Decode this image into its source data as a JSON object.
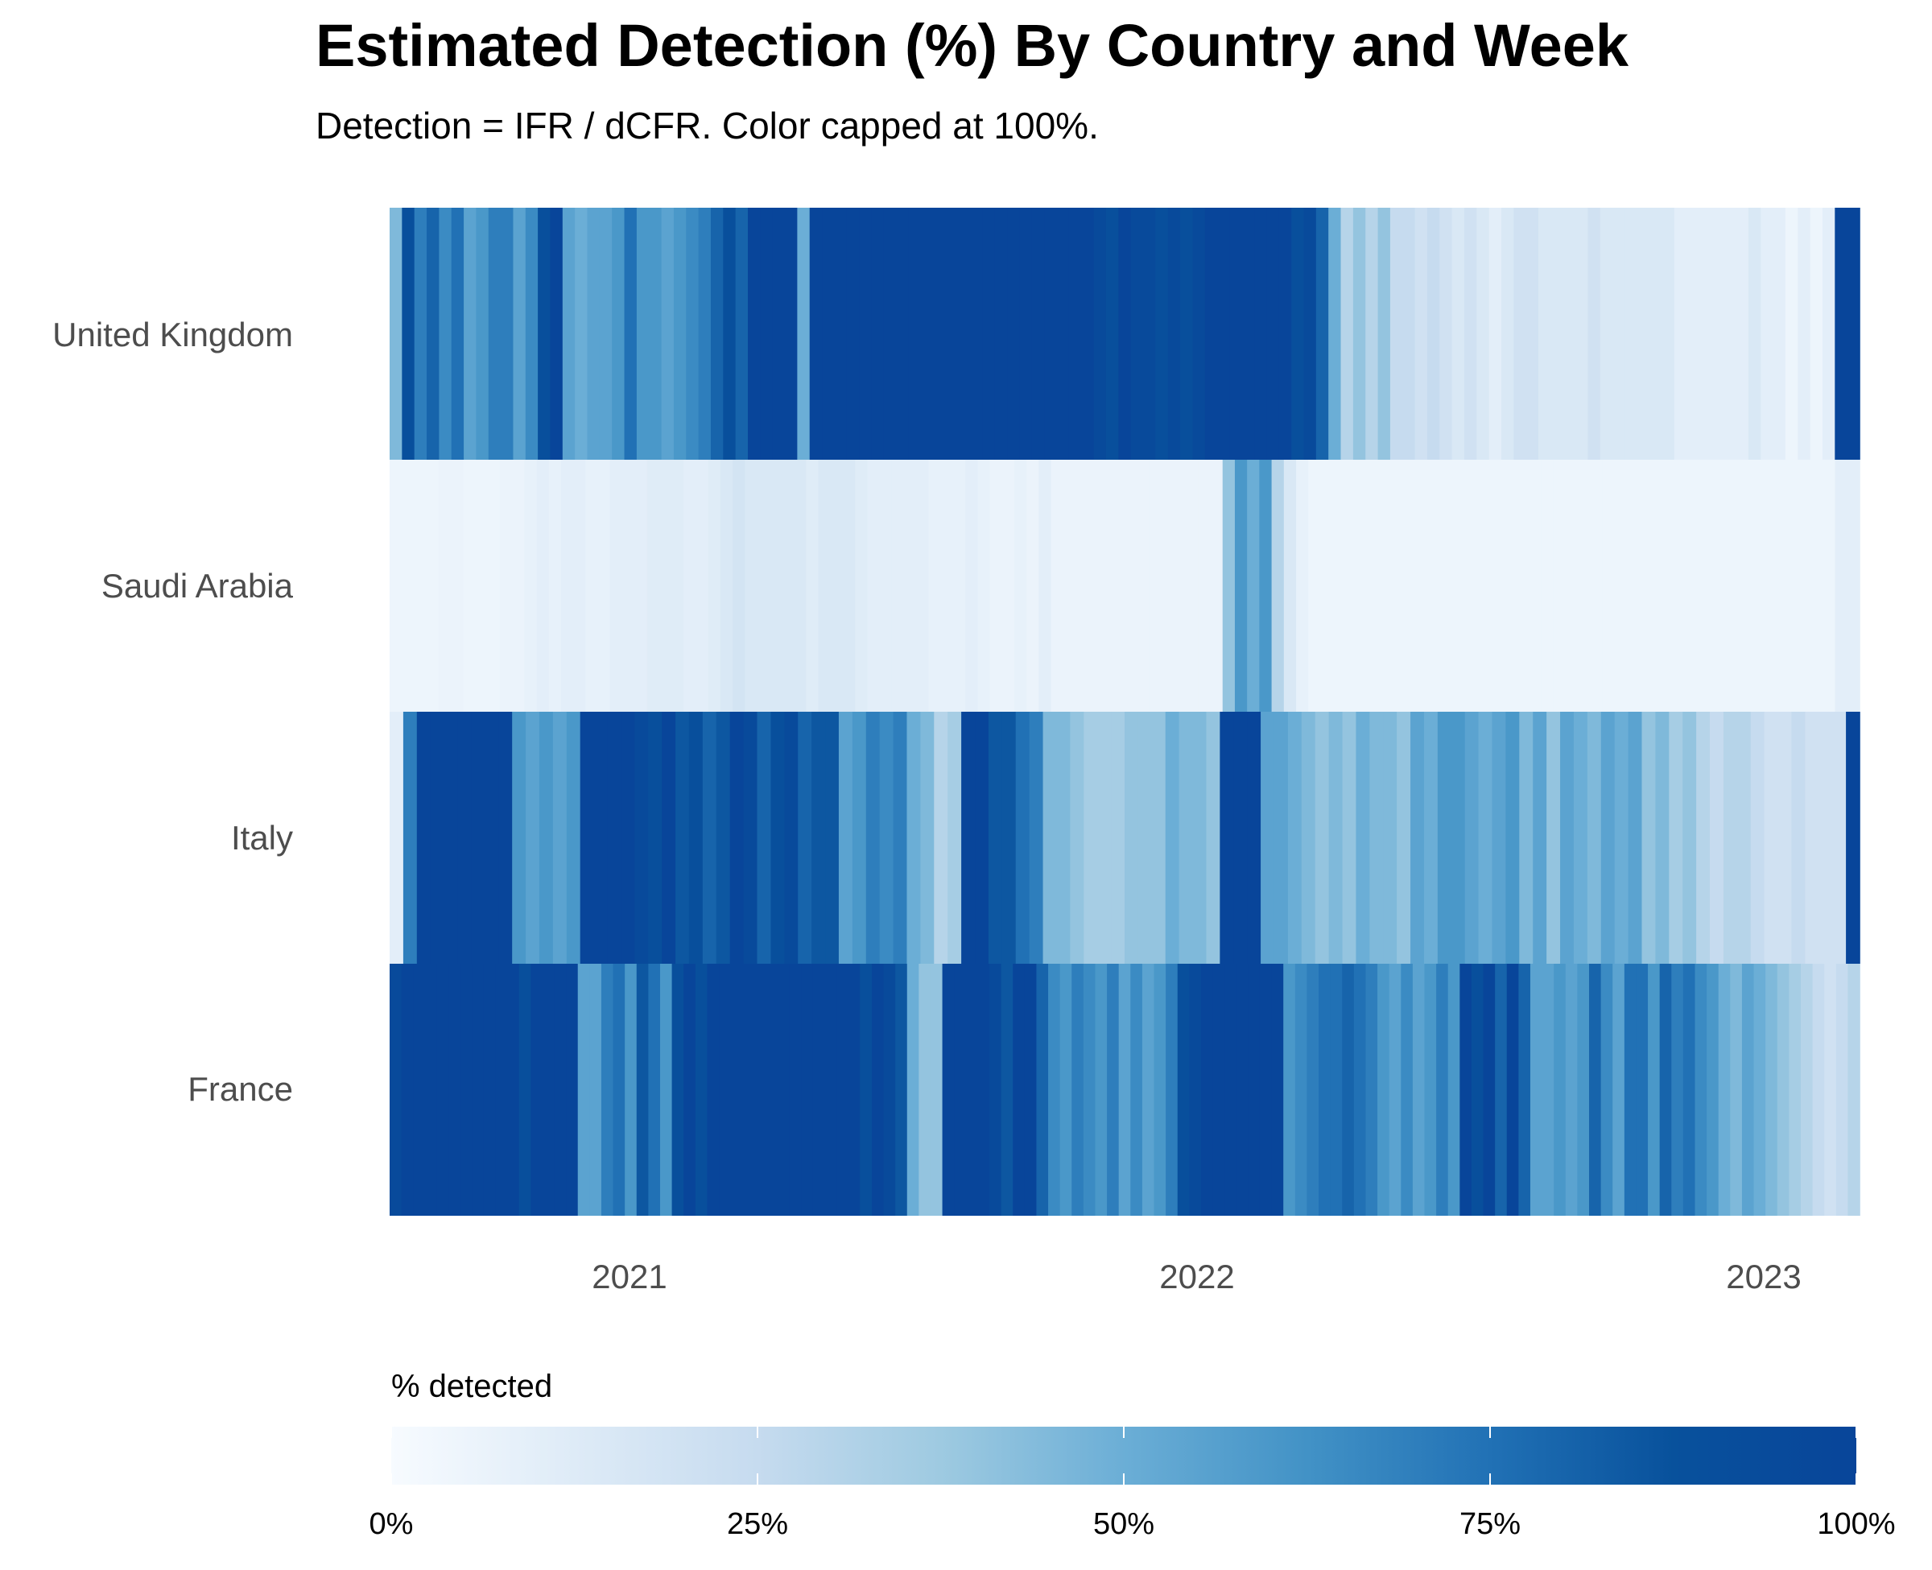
{
  "colors": {
    "scale": [
      "#f7fbff",
      "#deebf7",
      "#c6dbef",
      "#9ecae1",
      "#6baed6",
      "#4292c6",
      "#2171b5",
      "#08519c",
      "#08459a"
    ],
    "background": "#ffffff"
  },
  "chart_data": {
    "type": "heatmap",
    "title": "Estimated Detection (%) By Country and Week",
    "subtitle": "Detection = IFR / dCFR. Color capped at 100%.",
    "y_categories": [
      "United Kingdom",
      "Saudi Arabia",
      "Italy",
      "France"
    ],
    "x_ticks": [
      "2021",
      "2022",
      "2023"
    ],
    "x_range": [
      "2020-07",
      "2023-03"
    ],
    "legend": {
      "title": "% detected",
      "ticks": [
        "0%",
        "25%",
        "50%",
        "75%",
        "100%"
      ],
      "range": [
        0,
        100
      ],
      "placement": "bottom"
    },
    "series": [
      {
        "name": "United Kingdom",
        "values": [
          45,
          90,
          70,
          80,
          65,
          75,
          55,
          60,
          70,
          70,
          55,
          65,
          90,
          100,
          55,
          50,
          55,
          55,
          60,
          75,
          60,
          60,
          55,
          60,
          65,
          70,
          80,
          90,
          80,
          100,
          100,
          100,
          100,
          50,
          100,
          100,
          100,
          100,
          100,
          100,
          100,
          100,
          100,
          100,
          100,
          100,
          100,
          100,
          100,
          100,
          100,
          100,
          100,
          100,
          100,
          100,
          100,
          95,
          90,
          100,
          95,
          95,
          90,
          95,
          90,
          95,
          100,
          100,
          100,
          100,
          100,
          100,
          100,
          90,
          95,
          80,
          50,
          30,
          40,
          30,
          40,
          25,
          25,
          20,
          25,
          20,
          15,
          20,
          15,
          10,
          15,
          20,
          20,
          15,
          15,
          15,
          15,
          20,
          15,
          15,
          15,
          15,
          15,
          15,
          10,
          10,
          10,
          10,
          10,
          10,
          15,
          10,
          10,
          5,
          10,
          5,
          10,
          100,
          100
        ]
      },
      {
        "name": "Saudi Arabia",
        "values": [
          5,
          5,
          5,
          5,
          6,
          6,
          5,
          5,
          5,
          6,
          6,
          8,
          10,
          8,
          10,
          10,
          8,
          8,
          10,
          10,
          10,
          12,
          12,
          12,
          10,
          10,
          12,
          15,
          18,
          15,
          15,
          15,
          15,
          15,
          12,
          15,
          15,
          15,
          12,
          10,
          10,
          10,
          10,
          10,
          8,
          8,
          8,
          10,
          8,
          6,
          6,
          8,
          6,
          10,
          6,
          6,
          6,
          6,
          6,
          6,
          6,
          6,
          6,
          6,
          6,
          6,
          6,
          6,
          40,
          60,
          50,
          60,
          30,
          15,
          8,
          5,
          5,
          5,
          5,
          5,
          5,
          5,
          5,
          5,
          5,
          5,
          5,
          5,
          5,
          5,
          5,
          5,
          5,
          5,
          5,
          5,
          5,
          5,
          5,
          5,
          5,
          5,
          5,
          5,
          5,
          5,
          5,
          5,
          5,
          5,
          5,
          5,
          5,
          5,
          5,
          5,
          5,
          5,
          10,
          10
        ]
      },
      {
        "name": "Italy",
        "values": [
          10,
          70,
          100,
          100,
          100,
          100,
          100,
          100,
          100,
          60,
          55,
          60,
          55,
          60,
          100,
          100,
          100,
          100,
          95,
          90,
          100,
          85,
          90,
          80,
          85,
          100,
          95,
          80,
          90,
          95,
          80,
          85,
          85,
          55,
          60,
          70,
          65,
          70,
          50,
          45,
          30,
          35,
          100,
          100,
          85,
          85,
          75,
          70,
          45,
          45,
          40,
          35,
          35,
          35,
          40,
          40,
          40,
          50,
          45,
          45,
          40,
          100,
          100,
          100,
          55,
          55,
          50,
          45,
          40,
          45,
          40,
          50,
          45,
          45,
          40,
          55,
          50,
          60,
          60,
          55,
          50,
          55,
          60,
          45,
          55,
          40,
          55,
          50,
          45,
          55,
          50,
          55,
          40,
          45,
          35,
          40,
          30,
          25,
          30,
          30,
          25,
          20,
          20,
          25,
          20,
          20,
          20,
          100
        ]
      },
      {
        "name": "France",
        "values": [
          95,
          100,
          100,
          100,
          100,
          100,
          100,
          100,
          100,
          100,
          100,
          90,
          100,
          100,
          100,
          100,
          55,
          55,
          70,
          75,
          60,
          85,
          75,
          60,
          90,
          100,
          90,
          100,
          100,
          100,
          100,
          100,
          100,
          100,
          100,
          100,
          100,
          100,
          100,
          100,
          90,
          100,
          95,
          85,
          50,
          40,
          40,
          100,
          100,
          100,
          100,
          95,
          85,
          100,
          100,
          80,
          65,
          60,
          70,
          65,
          60,
          70,
          55,
          65,
          55,
          60,
          70,
          90,
          95,
          100,
          100,
          100,
          100,
          100,
          100,
          100,
          60,
          65,
          70,
          75,
          75,
          80,
          75,
          70,
          60,
          55,
          65,
          55,
          60,
          70,
          60,
          100,
          90,
          100,
          80,
          100,
          80,
          55,
          55,
          60,
          55,
          60,
          80,
          65,
          55,
          75,
          75,
          60,
          80,
          70,
          75,
          65,
          60,
          50,
          45,
          55,
          50,
          45,
          40,
          35,
          30,
          25,
          20,
          25,
          30
        ]
      }
    ]
  }
}
